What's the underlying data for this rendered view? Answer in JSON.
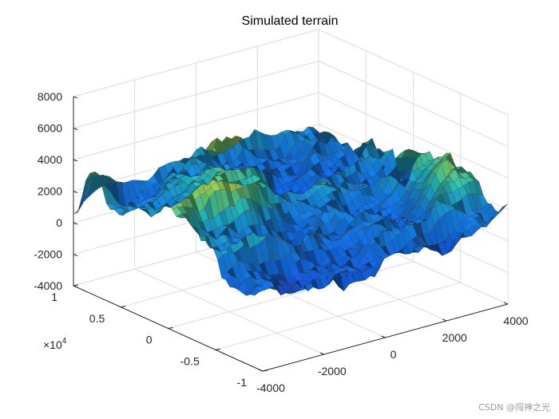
{
  "chart_data": {
    "type": "surface",
    "title": "Simulated terrain",
    "colormap": "parula",
    "grid": true,
    "z_axis": {
      "range": [
        -4000,
        8000
      ],
      "ticks": [
        -4000,
        -2000,
        0,
        2000,
        4000,
        6000,
        8000
      ],
      "tick_labels": [
        "-4000",
        "-2000",
        "0",
        "2000",
        "4000",
        "6000",
        "8000"
      ]
    },
    "y_axis": {
      "range": [
        -10000,
        10000
      ],
      "ticks": [
        -1,
        -0.5,
        0,
        0.5,
        1
      ],
      "tick_labels": [
        "-1",
        "-0.5",
        "0",
        "0.5",
        "1"
      ],
      "exponent_label": "×10",
      "exponent_power": "4"
    },
    "x_axis": {
      "range": [
        -4000,
        4000
      ],
      "ticks": [
        -4000,
        -2000,
        0,
        2000,
        4000
      ],
      "tick_labels": [
        "-4000",
        "-2000",
        "0",
        "2000",
        "4000"
      ]
    },
    "surface_features": {
      "z_min_approx": -1500,
      "z_max_approx": 6500,
      "peak_location_approx": [
        -2000,
        2000
      ],
      "mean_level_approx": 2000
    }
  },
  "watermark": "CSDN @闯神之光",
  "colors": {
    "edge": "#3a3a3a",
    "axis": "#262626",
    "grid": "#dcdcdc",
    "parula_low": "#352a87",
    "parula_mid": "#21b5b2",
    "parula_high": "#f9fb0e"
  }
}
